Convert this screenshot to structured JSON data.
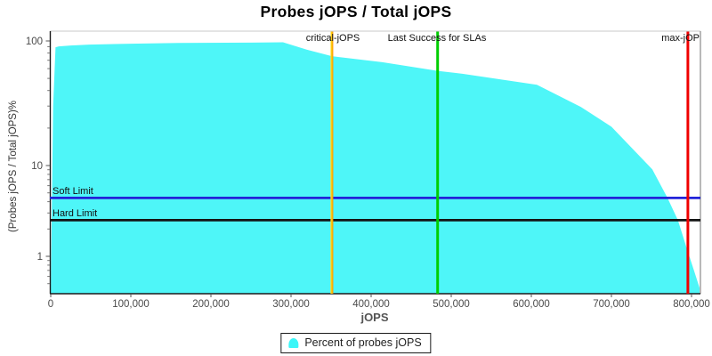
{
  "title": "Probes jOPS / Total jOPS",
  "axes": {
    "x_label": "jOPS",
    "y_label": "(Probes jOPS / Total jOPS)%",
    "x_ticks": [
      {
        "value": 0,
        "label": "0"
      },
      {
        "value": 100000,
        "label": "100,000"
      },
      {
        "value": 200000,
        "label": "200,000"
      },
      {
        "value": 300000,
        "label": "300,000"
      },
      {
        "value": 400000,
        "label": "400,000"
      },
      {
        "value": 500000,
        "label": "500,000"
      },
      {
        "value": 600000,
        "label": "600,000"
      },
      {
        "value": 700000,
        "label": "700,000"
      },
      {
        "value": 800000,
        "label": "800,000"
      }
    ],
    "y_major_ticks": [
      {
        "value": 100,
        "label": "100"
      },
      {
        "value": 10,
        "label": "10"
      },
      {
        "value": 1,
        "label": "1"
      }
    ],
    "y_minor_tick_values": [
      90,
      80,
      70,
      60,
      50,
      40,
      30,
      20,
      9,
      8,
      7,
      6,
      5,
      4,
      3,
      2,
      0.9,
      0.8,
      0.7,
      0.6,
      0.5
    ]
  },
  "markers": {
    "critical_jops": {
      "label": "critical-jOPS",
      "x": 351000,
      "color": "#ffb400"
    },
    "last_success": {
      "label": "Last Success for SLAs",
      "x": 483000,
      "color": "#00ce00"
    },
    "max_jops": {
      "label": "max-jOP",
      "x": 795500,
      "color": "#f00000"
    },
    "soft_limit": {
      "label": "Soft Limit",
      "y": 4.4,
      "color": "#2323d8"
    },
    "hard_limit": {
      "label": "Hard Limit",
      "y": 2.5,
      "color": "#141414"
    }
  },
  "legend": {
    "label": "Percent of probes jOPS",
    "marker_color": "#3cf6f8"
  },
  "colors": {
    "area_fill": "#4ef6f8",
    "axis_text": "#4a4a4a"
  },
  "chart_data": {
    "type": "area",
    "title": "Probes jOPS / Total jOPS",
    "xlabel": "jOPS",
    "ylabel": "(Probes jOPS / Total jOPS)%",
    "x_range": [
      0,
      810000
    ],
    "y_scale": "log",
    "y_range": [
      0.4,
      110
    ],
    "grid": false,
    "legend_position": "bottom",
    "series": [
      {
        "name": "Percent of probes jOPS",
        "points": [
          [
            0,
            0.4
          ],
          [
            3000,
            30
          ],
          [
            6000,
            89
          ],
          [
            10000,
            90.5
          ],
          [
            25000,
            92
          ],
          [
            48000,
            93.5
          ],
          [
            100000,
            95
          ],
          [
            160000,
            96.5
          ],
          [
            250000,
            97
          ],
          [
            290000,
            97.5
          ],
          [
            320000,
            85
          ],
          [
            351000,
            75.5
          ],
          [
            414000,
            67.5
          ],
          [
            483000,
            57.5
          ],
          [
            514000,
            54.5
          ],
          [
            607000,
            44.5
          ],
          [
            662000,
            29.5
          ],
          [
            700000,
            20.5
          ],
          [
            751000,
            9.1
          ],
          [
            770000,
            4.4
          ],
          [
            783000,
            2.5
          ],
          [
            795000,
            1.15
          ],
          [
            803000,
            0.7
          ],
          [
            810000,
            0.45
          ]
        ]
      }
    ],
    "vlines": [
      {
        "label": "critical-jOPS",
        "x": 351000,
        "color": "orange"
      },
      {
        "label": "Last Success for SLAs",
        "x": 483000,
        "color": "green"
      },
      {
        "label": "max-jOP",
        "x": 795500,
        "color": "red"
      }
    ],
    "hlines": [
      {
        "label": "Soft Limit",
        "y": 4.4,
        "color": "blue"
      },
      {
        "label": "Hard Limit",
        "y": 2.5,
        "color": "black"
      }
    ]
  }
}
